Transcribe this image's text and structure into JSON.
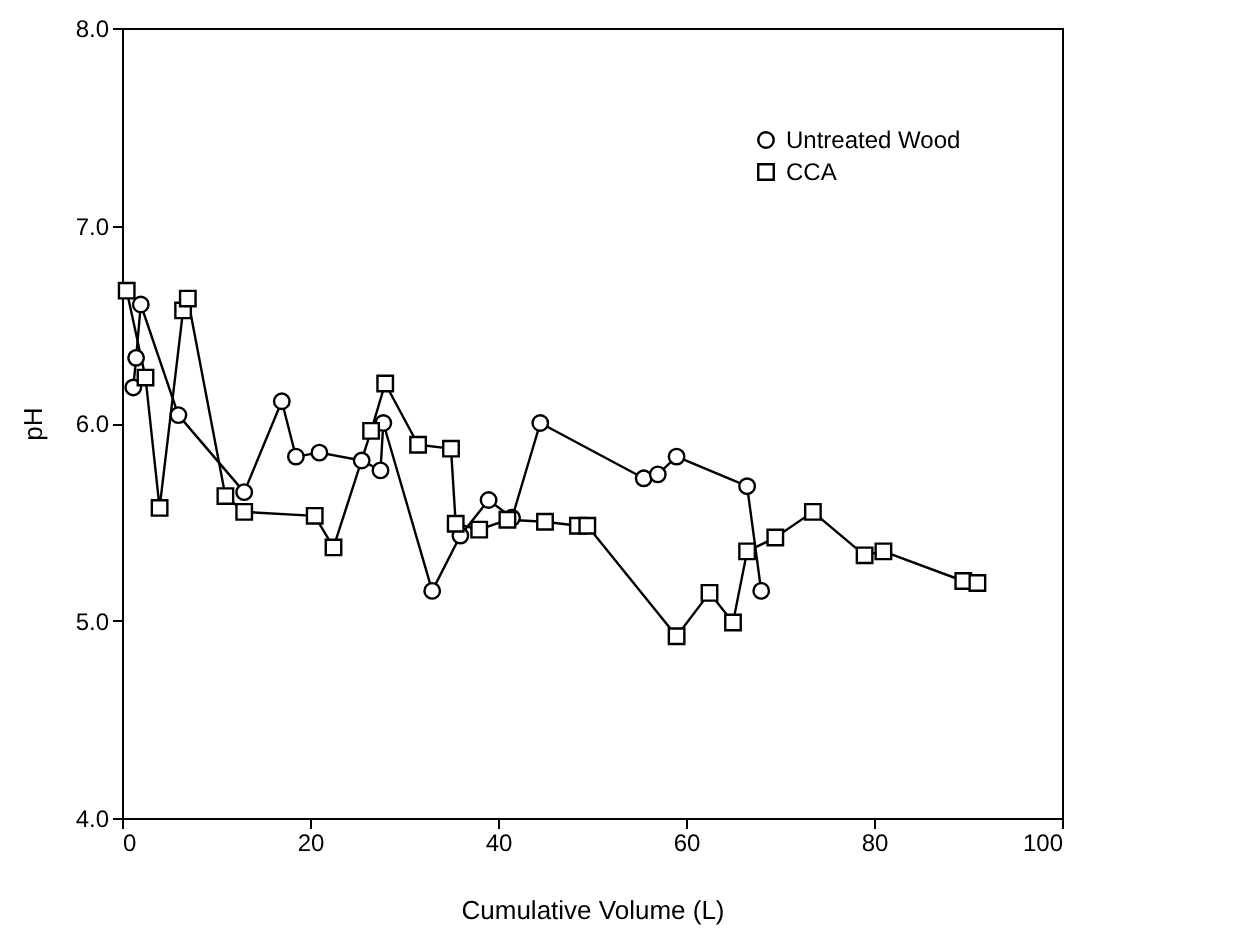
{
  "chart_data": {
    "type": "line",
    "xlabel": "Cumulative Volume (L)",
    "ylabel": "pH",
    "xlim": [
      0,
      100
    ],
    "xticks": [
      0,
      20,
      40,
      60,
      80,
      100
    ],
    "ylim": [
      4,
      8
    ],
    "yticks": [
      {
        "value": 4,
        "label": "4.0"
      },
      {
        "value": 5,
        "label": "5.0"
      },
      {
        "value": 6,
        "label": "6.0"
      },
      {
        "value": 7,
        "label": "7.0"
      },
      {
        "value": 8,
        "label": "8.0"
      }
    ],
    "legend": "top right",
    "grid": false,
    "series": [
      {
        "name": "Untreated Wood",
        "color": "#000000",
        "marker": "circle",
        "x": [
          1.2,
          1.5,
          2,
          6,
          13,
          17,
          18.5,
          21,
          25.5,
          27.5,
          27.8,
          33,
          36,
          39,
          41.5,
          44.5,
          55.5,
          57,
          59,
          66.5,
          68
        ],
        "values": [
          6.18,
          6.33,
          6.6,
          6.04,
          5.65,
          6.11,
          5.83,
          5.85,
          5.81,
          5.76,
          6.0,
          5.15,
          5.43,
          5.61,
          5.52,
          6.0,
          5.72,
          5.74,
          5.83,
          5.68,
          5.15
        ]
      },
      {
        "name": "CCA",
        "color": "#000000",
        "marker": "square",
        "x": [
          0.5,
          2.5,
          4,
          6.5,
          7,
          11,
          13,
          20.5,
          22.5,
          26.5,
          28,
          31.5,
          35,
          35.5,
          38,
          41,
          45,
          48.5,
          49.5,
          59,
          62.5,
          65,
          66.5,
          69.5,
          73.5,
          79,
          81,
          89.5,
          91
        ],
        "values": [
          6.67,
          6.23,
          5.57,
          6.57,
          6.63,
          5.63,
          5.55,
          5.53,
          5.37,
          5.96,
          6.2,
          5.89,
          5.87,
          5.49,
          5.46,
          5.51,
          5.5,
          5.48,
          5.48,
          4.92,
          5.14,
          4.99,
          5.35,
          5.42,
          5.55,
          5.33,
          5.35,
          5.2,
          5.19
        ]
      }
    ]
  }
}
